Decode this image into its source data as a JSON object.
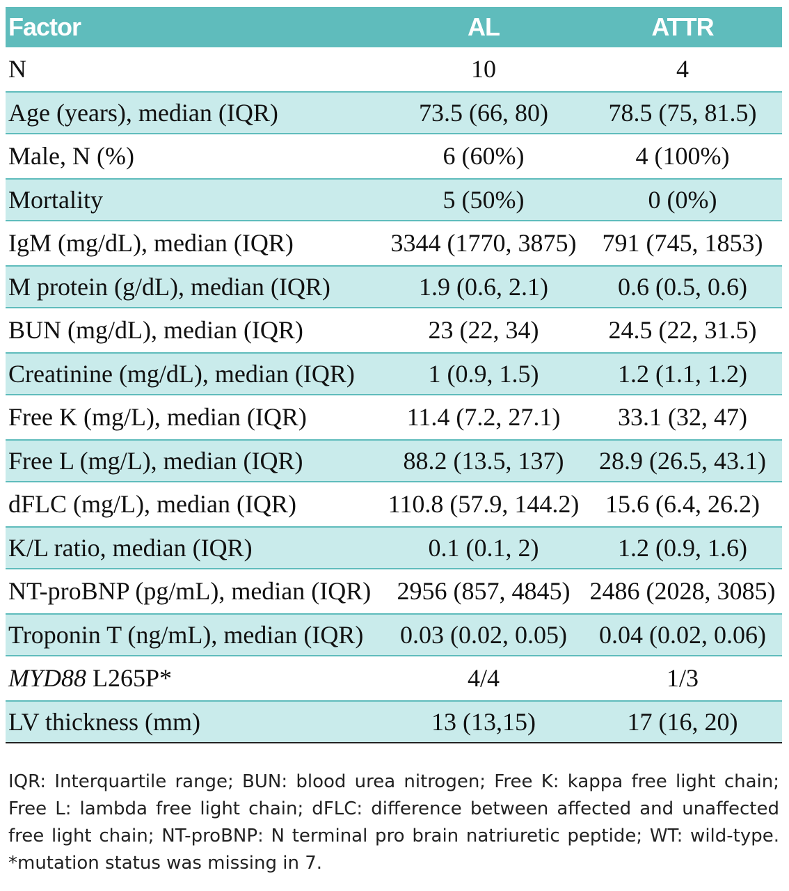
{
  "header": {
    "factor": "Factor",
    "al": "AL",
    "attr": "ATTR"
  },
  "rows": [
    {
      "factor": "N",
      "al": "10",
      "attr": "4"
    },
    {
      "factor": "Age (years), median (IQR)",
      "al": "73.5 (66, 80)",
      "attr": "78.5 (75, 81.5)"
    },
    {
      "factor": "Male, N (%)",
      "al": "6 (60%)",
      "attr": "4 (100%)"
    },
    {
      "factor": "Mortality",
      "al": "5 (50%)",
      "attr": "0 (0%)"
    },
    {
      "factor": "IgM (mg/dL), median (IQR)",
      "al": "3344 (1770, 3875)",
      "attr": "791 (745, 1853)"
    },
    {
      "factor": "M protein (g/dL), median (IQR)",
      "al": "1.9 (0.6, 2.1)",
      "attr": "0.6 (0.5, 0.6)"
    },
    {
      "factor": "BUN (mg/dL), median (IQR)",
      "al": "23 (22, 34)",
      "attr": "24.5 (22, 31.5)"
    },
    {
      "factor": "Creatinine (mg/dL), median (IQR)",
      "al": "1 (0.9, 1.5)",
      "attr": "1.2 (1.1, 1.2)"
    },
    {
      "factor": "Free K (mg/L), median (IQR)",
      "al": "11.4 (7.2, 27.1)",
      "attr": "33.1 (32, 47)"
    },
    {
      "factor": "Free L (mg/L), median (IQR)",
      "al": "88.2 (13.5, 137)",
      "attr": "28.9 (26.5, 43.1)"
    },
    {
      "factor": "dFLC (mg/L), median (IQR)",
      "al": "110.8 (57.9, 144.2)",
      "attr": "15.6 (6.4, 26.2)"
    },
    {
      "factor": "K/L ratio, median (IQR)",
      "al": "0.1 (0.1, 2)",
      "attr": "1.2 (0.9, 1.6)"
    },
    {
      "factor": "NT-proBNP (pg/mL), median (IQR)",
      "al": "2956 (857, 4845)",
      "attr": "2486 (2028, 3085)"
    },
    {
      "factor": "Troponin T (ng/mL), median (IQR)",
      "al": "0.03 (0.02, 0.05)",
      "attr": "0.04 (0.02, 0.06)"
    },
    {
      "factor_italic": "MYD88",
      "factor_rest": " L265P*",
      "al": "4/4",
      "attr": "1/3"
    },
    {
      "factor": "LV thickness (mm)",
      "al": "13 (13,15)",
      "attr": "17 (16, 20)"
    }
  ],
  "footnote": "IQR: Interquartile range; BUN: blood urea nitrogen; Free K: kappa free light chain; Free L: lambda free light chain; dFLC: difference between affected and unaffected free light chain; NT-proBNP: N terminal pro brain natriuretic peptide; WT: wild-type. *mutation status was missing in 7."
}
